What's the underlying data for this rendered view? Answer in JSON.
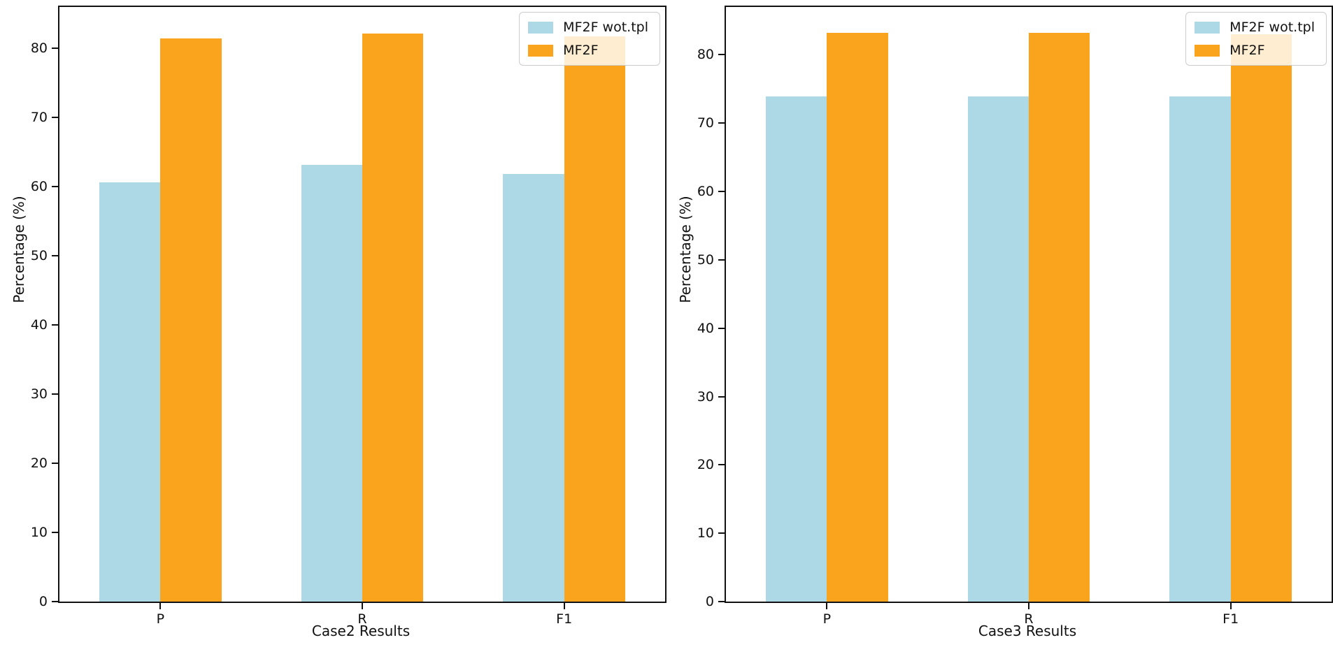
{
  "figure": {
    "background": "#ffffff",
    "axis_color": "#111111",
    "legend_border_color": "#cccccc",
    "legend_background": "rgba(255,255,255,0.8)"
  },
  "chart_data": [
    {
      "type": "bar",
      "title": "",
      "xlabel": "Case2 Results",
      "ylabel": "Percentage (%)",
      "categories": [
        "P",
        "R",
        "F1"
      ],
      "series": [
        {
          "name": "MF2F wot.tpl",
          "color": "#ADD8E6",
          "values": [
            60.6,
            63.2,
            61.8
          ]
        },
        {
          "name": "MF2F",
          "color": "#F9A41C",
          "values": [
            81.5,
            82.2,
            81.8
          ]
        }
      ],
      "ylim": [
        0,
        86
      ],
      "yticks": [
        0,
        10,
        20,
        30,
        40,
        50,
        60,
        70,
        80
      ],
      "grid": false,
      "legend_position": "upper right",
      "bar_width_fraction": 0.101
    },
    {
      "type": "bar",
      "title": "",
      "xlabel": "Case3 Results",
      "ylabel": "Percentage (%)",
      "categories": [
        "P",
        "R",
        "F1"
      ],
      "series": [
        {
          "name": "MF2F wot.tpl",
          "color": "#ADD8E6",
          "values": [
            73.9,
            73.9,
            73.9
          ]
        },
        {
          "name": "MF2F",
          "color": "#F9A41C",
          "values": [
            83.2,
            83.2,
            83.0
          ]
        }
      ],
      "ylim": [
        0,
        87
      ],
      "yticks": [
        0,
        10,
        20,
        30,
        40,
        50,
        60,
        70,
        80
      ],
      "grid": false,
      "legend_position": "upper right",
      "bar_width_fraction": 0.101
    }
  ]
}
